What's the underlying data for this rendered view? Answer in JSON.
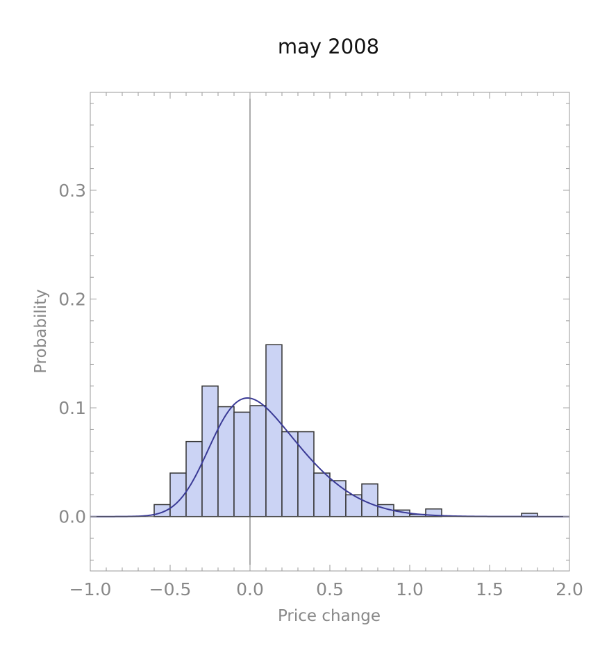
{
  "chart_data": {
    "type": "bar",
    "title": "may 2008",
    "xlabel": "Price change",
    "ylabel": "Probability",
    "xlim": [
      -1.0,
      2.0
    ],
    "ylim": [
      -0.05,
      0.39
    ],
    "x_ticks": [
      {
        "value": -1.0,
        "label": "−1.0"
      },
      {
        "value": -0.5,
        "label": "−0.5"
      },
      {
        "value": 0.0,
        "label": "0.0"
      },
      {
        "value": 0.5,
        "label": "0.5"
      },
      {
        "value": 1.0,
        "label": "1.0"
      },
      {
        "value": 1.5,
        "label": "1.5"
      },
      {
        "value": 2.0,
        "label": "2.0"
      }
    ],
    "y_ticks": [
      {
        "value": 0.0,
        "label": "0.0"
      },
      {
        "value": 0.1,
        "label": "0.1"
      },
      {
        "value": 0.2,
        "label": "0.2"
      },
      {
        "value": 0.3,
        "label": "0.3"
      }
    ],
    "bin_width": 0.1,
    "bins": [
      {
        "start": -0.6,
        "value": 0.011
      },
      {
        "start": -0.5,
        "value": 0.04
      },
      {
        "start": -0.4,
        "value": 0.069
      },
      {
        "start": -0.3,
        "value": 0.12
      },
      {
        "start": -0.2,
        "value": 0.101
      },
      {
        "start": -0.1,
        "value": 0.096
      },
      {
        "start": 0.0,
        "value": 0.102
      },
      {
        "start": 0.1,
        "value": 0.158
      },
      {
        "start": 0.2,
        "value": 0.078
      },
      {
        "start": 0.3,
        "value": 0.078
      },
      {
        "start": 0.4,
        "value": 0.04
      },
      {
        "start": 0.5,
        "value": 0.033
      },
      {
        "start": 0.6,
        "value": 0.02
      },
      {
        "start": 0.7,
        "value": 0.03
      },
      {
        "start": 0.8,
        "value": 0.011
      },
      {
        "start": 0.9,
        "value": 0.006
      },
      {
        "start": 1.0,
        "value": 0.002
      },
      {
        "start": 1.1,
        "value": 0.007
      },
      {
        "start": 1.7,
        "value": 0.003
      }
    ],
    "density_curve": {
      "shape": "skew-normal",
      "peak_x": 0.06,
      "peak_y": 0.109
    },
    "colors": {
      "bar_fill": "#cbd3f4",
      "bar_stroke": "#333333",
      "curve": "#3a3a96",
      "frame": "#999999",
      "tick_text": "#888888"
    },
    "grid": false,
    "legend": "none"
  }
}
